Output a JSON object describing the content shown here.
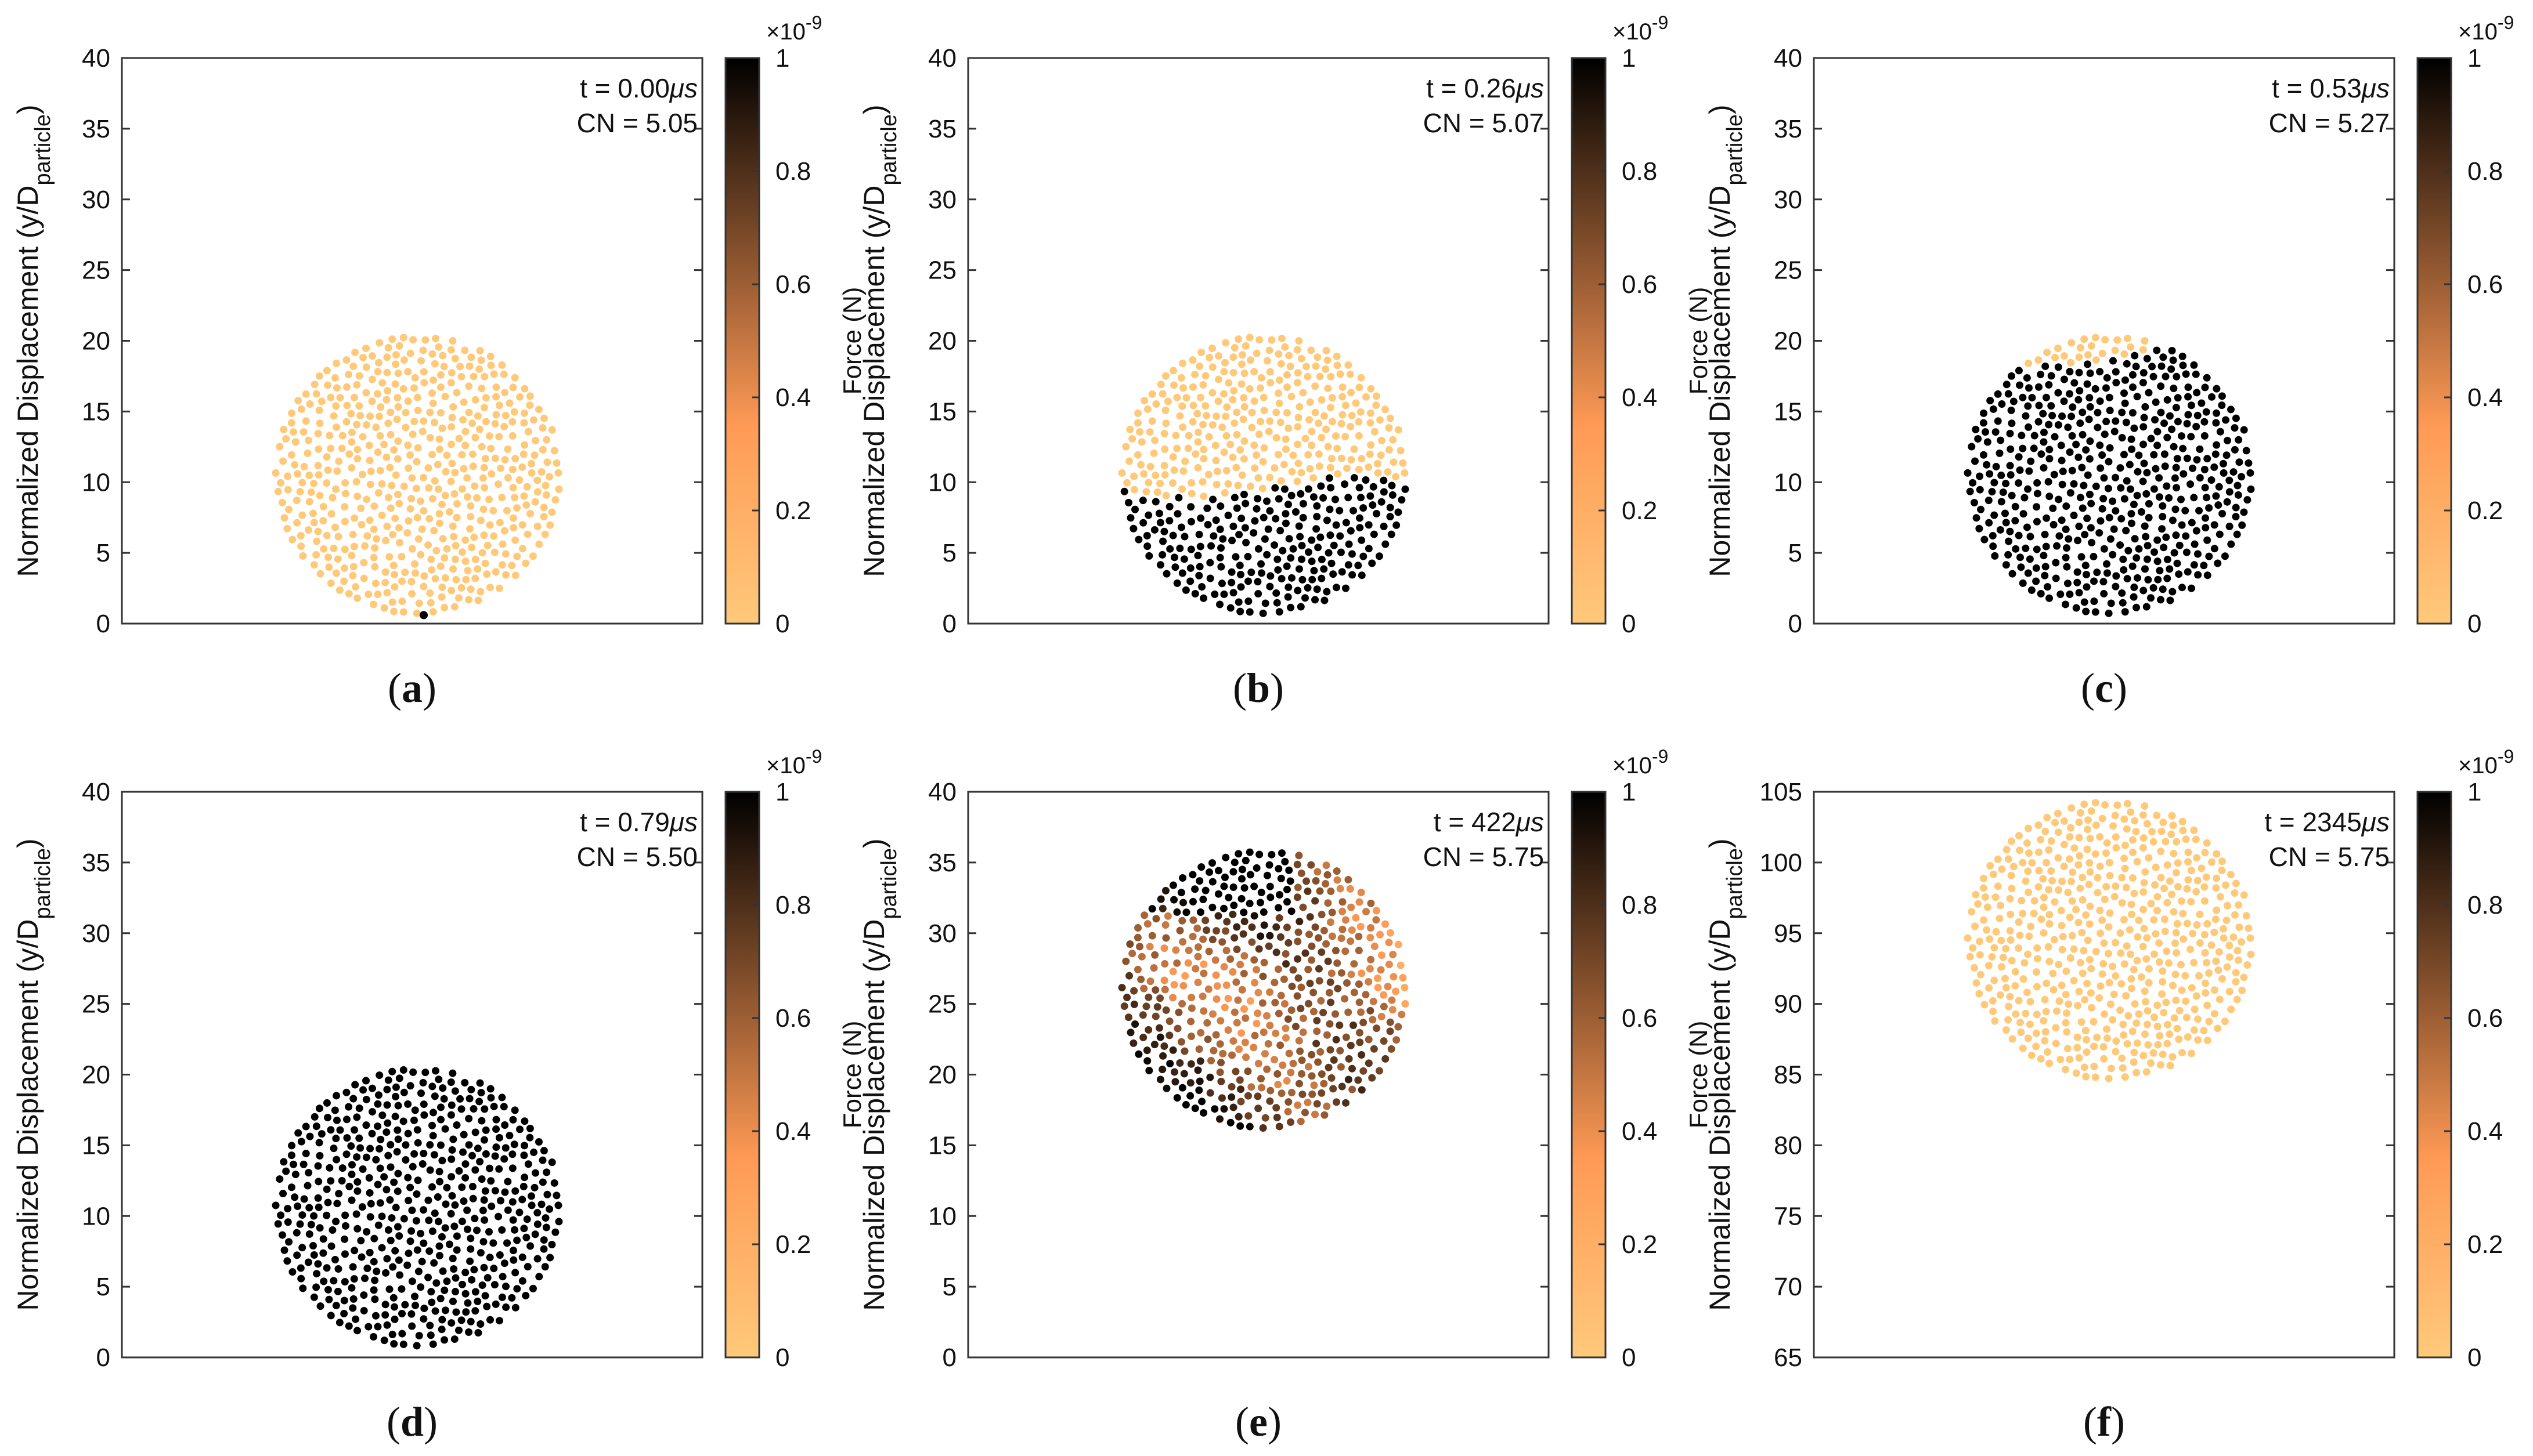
{
  "figure": {
    "ylabel_main": "Normalized Displacement (y/D",
    "ylabel_sub": "particle",
    "ylabel_close": ")",
    "colorbar_label": "Force (N)",
    "colorbar_exponent_base": "×10",
    "colorbar_exponent_power": "-9",
    "colormap_low": "#FFC97A",
    "colormap_mid": "#FF9A55",
    "colormap_high": "#000000"
  },
  "chart_data": [
    {
      "type": "scatter",
      "label_open": "(",
      "label_letter": "a",
      "label_close": ")",
      "time_text": "t = 0.00",
      "time_unit": "μs",
      "cn_text": "CN = 5.05",
      "ylim": [
        0,
        40
      ],
      "yticks": [
        "0",
        "5",
        "10",
        "15",
        "20",
        "25",
        "30",
        "35",
        "40"
      ],
      "colorbar_ticks": [
        "0",
        "0.2",
        "0.4",
        "0.6",
        "0.8",
        "1"
      ],
      "colorbar_range": [
        0,
        1
      ],
      "cloud": {
        "cx": 0.51,
        "cy": 10.5,
        "r": 9.8,
        "count": 620
      },
      "force_pattern": "low",
      "note_dot": {
        "x": 0.52,
        "y": 0.6
      }
    },
    {
      "type": "scatter",
      "label_open": "(",
      "label_letter": "b",
      "label_close": ")",
      "time_text": "t = 0.26",
      "time_unit": "μs",
      "cn_text": "CN = 5.07",
      "ylim": [
        0,
        40
      ],
      "yticks": [
        "0",
        "5",
        "10",
        "15",
        "20",
        "25",
        "30",
        "35",
        "40"
      ],
      "colorbar_ticks": [
        "0",
        "0.2",
        "0.4",
        "0.6",
        "0.8",
        "1"
      ],
      "colorbar_range": [
        0,
        1
      ],
      "cloud": {
        "cx": 0.51,
        "cy": 10.5,
        "r": 9.8,
        "count": 620
      },
      "force_pattern": "bottom-high",
      "front_y": 9.5
    },
    {
      "type": "scatter",
      "label_open": "(",
      "label_letter": "c",
      "label_close": ")",
      "time_text": "t = 0.53",
      "time_unit": "μs",
      "cn_text": "CN = 5.27",
      "ylim": [
        0,
        40
      ],
      "yticks": [
        "0",
        "5",
        "10",
        "15",
        "20",
        "25",
        "30",
        "35",
        "40"
      ],
      "colorbar_ticks": [
        "0",
        "0.2",
        "0.4",
        "0.6",
        "0.8",
        "1"
      ],
      "colorbar_range": [
        0,
        1
      ],
      "cloud": {
        "cx": 0.51,
        "cy": 10.5,
        "r": 9.8,
        "count": 620
      },
      "force_pattern": "bottom-high",
      "front_y": 18.8
    },
    {
      "type": "scatter",
      "label_open": "(",
      "label_letter": "d",
      "label_close": ")",
      "time_text": "t = 0.79",
      "time_unit": "μs",
      "cn_text": "CN = 5.50",
      "ylim": [
        0,
        40
      ],
      "yticks": [
        "0",
        "5",
        "10",
        "15",
        "20",
        "25",
        "30",
        "35",
        "40"
      ],
      "colorbar_ticks": [
        "0",
        "0.2",
        "0.4",
        "0.6",
        "0.8",
        "1"
      ],
      "colorbar_range": [
        0,
        1
      ],
      "cloud": {
        "cx": 0.51,
        "cy": 10.6,
        "r": 9.8,
        "count": 620
      },
      "force_pattern": "high"
    },
    {
      "type": "scatter",
      "label_open": "(",
      "label_letter": "e",
      "label_close": ")",
      "time_text": "t = 422",
      "time_unit": "μs",
      "cn_text": "CN = 5.75",
      "ylim": [
        0,
        40
      ],
      "yticks": [
        "0",
        "5",
        "10",
        "15",
        "20",
        "25",
        "30",
        "35",
        "40"
      ],
      "colorbar_ticks": [
        "0",
        "0.2",
        "0.4",
        "0.6",
        "0.8",
        "1"
      ],
      "colorbar_range": [
        0,
        1
      ],
      "cloud": {
        "cx": 0.51,
        "cy": 26.0,
        "r": 9.8,
        "count": 620
      },
      "force_pattern": "mixed"
    },
    {
      "type": "scatter",
      "label_open": "(",
      "label_letter": "f",
      "label_close": ")",
      "time_text": "t = 2345",
      "time_unit": "μs",
      "cn_text": "CN = 5.75",
      "ylim": [
        65,
        105
      ],
      "yticks": [
        "65",
        "70",
        "75",
        "80",
        "85",
        "90",
        "95",
        "100",
        "105"
      ],
      "colorbar_ticks": [
        "0",
        "0.2",
        "0.4",
        "0.6",
        "0.8",
        "1"
      ],
      "colorbar_range": [
        0,
        1
      ],
      "cloud": {
        "cx": 0.51,
        "cy": 94.5,
        "r": 9.8,
        "count": 620
      },
      "force_pattern": "low"
    }
  ]
}
